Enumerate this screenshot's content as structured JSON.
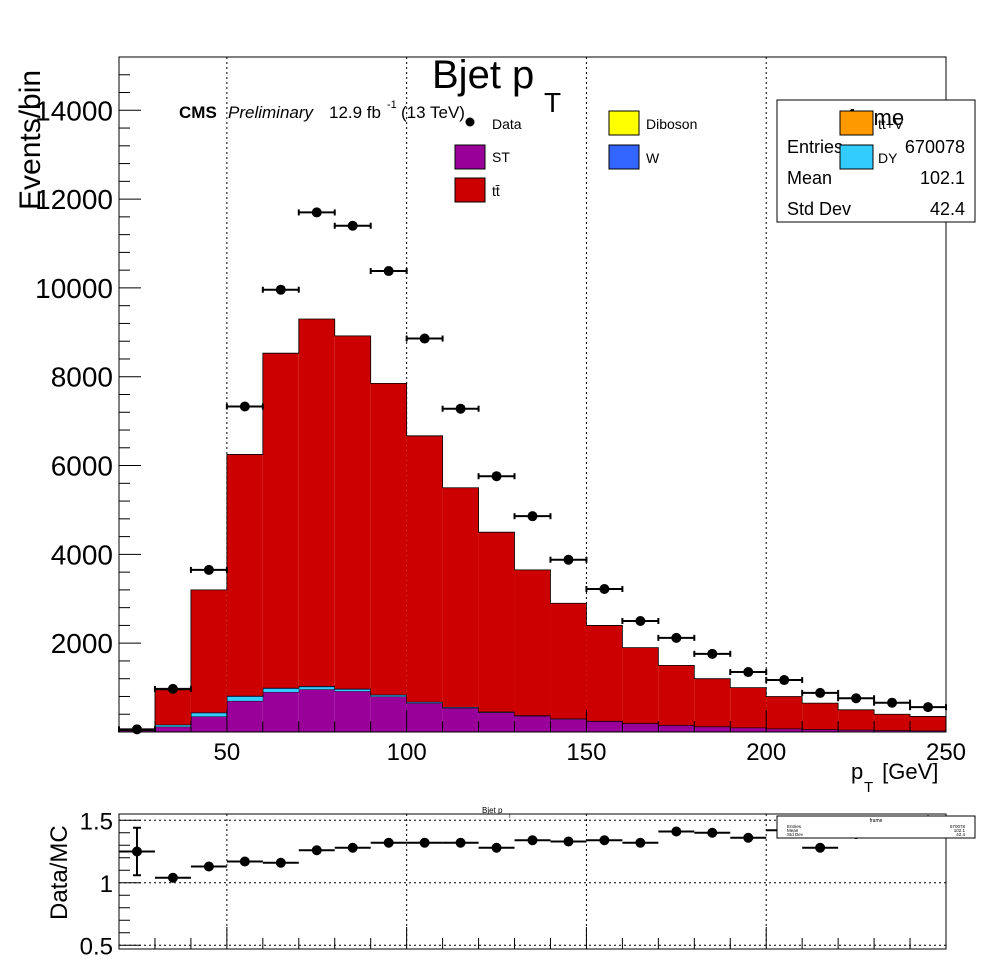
{
  "header": {
    "title": "Bjet p",
    "title_sub": "T",
    "cms_label": "CMS",
    "preliminary": "Preliminary",
    "lumi": "12.9 fb",
    "lumi_exp": "-1",
    "energy": "(13 TeV)"
  },
  "legend": {
    "data": "Data",
    "st": "ST",
    "ttbar": "tt̄",
    "diboson": "Diboson",
    "w": "W",
    "ttv": "tt+V",
    "dy": "DY"
  },
  "stats": {
    "title": "frame",
    "entries_label": "Entries",
    "entries_value": "670078",
    "mean_label": "Mean",
    "mean_value": "102.1",
    "stddev_label": "Std Dev",
    "stddev_value": "42.4"
  },
  "ratio_header": {
    "title": "Bjet p",
    "title_sub": "T"
  },
  "colors": {
    "ttbar": "#cc0000",
    "st": "#990099",
    "dy": "#33ccff",
    "w": "#3366ff",
    "diboson": "#ffff00",
    "ttv": "#ff9900",
    "data": "#000000"
  },
  "chart_data": [
    {
      "type": "bar",
      "stacked": true,
      "xlabel": "p",
      "xlabel_sub": "T",
      "xlabel_unit": " [GeV]",
      "ylabel": "Events/bin",
      "xlim": [
        20,
        250
      ],
      "ylim": [
        0,
        15200
      ],
      "x_ticks": [
        "50",
        "100",
        "150",
        "200",
        "250"
      ],
      "y_ticks": [
        "2000",
        "4000",
        "6000",
        "8000",
        "10000",
        "12000",
        "14000"
      ],
      "grid": "x",
      "legend_position": "top",
      "bin_edges": [
        20,
        30,
        40,
        50,
        60,
        70,
        80,
        90,
        100,
        110,
        120,
        130,
        140,
        150,
        160,
        170,
        180,
        190,
        200,
        210,
        220,
        230,
        240,
        250
      ],
      "series": [
        {
          "name": "ST",
          "color": "#990099",
          "values": [
            30,
            120,
            350,
            700,
            900,
            960,
            920,
            800,
            650,
            540,
            440,
            360,
            290,
            240,
            190,
            150,
            120,
            95,
            75,
            60,
            48,
            38,
            30
          ]
        },
        {
          "name": "DY",
          "color": "#33ccff",
          "values": [
            5,
            40,
            80,
            100,
            80,
            60,
            40,
            30,
            20,
            15,
            12,
            10,
            8,
            6,
            5,
            4,
            3,
            3,
            2,
            2,
            2,
            1,
            1
          ]
        },
        {
          "name": "W",
          "color": "#3366ff",
          "values": [
            1,
            5,
            10,
            15,
            15,
            15,
            15,
            10,
            10,
            8,
            6,
            5,
            4,
            3,
            3,
            2,
            2,
            2,
            1,
            1,
            1,
            1,
            1
          ]
        },
        {
          "name": "tt̄",
          "color": "#cc0000",
          "values": [
            14,
            785,
            2760,
            5435,
            7535,
            8265,
            7945,
            7010,
            5990,
            4937,
            4042,
            3275,
            2598,
            2151,
            1702,
            1344,
            1075,
            900,
            722,
            587,
            449,
            360,
            318
          ]
        }
      ],
      "data": {
        "name": "Data",
        "x": [
          25,
          35,
          45,
          55,
          65,
          75,
          85,
          95,
          105,
          115,
          125,
          135,
          145,
          155,
          165,
          175,
          185,
          195,
          205,
          215,
          225,
          235,
          245
        ],
        "y": [
          60,
          970,
          3650,
          7330,
          9960,
          11700,
          11400,
          10380,
          8860,
          7280,
          5760,
          4860,
          3880,
          3220,
          2500,
          2120,
          1760,
          1350,
          1170,
          880,
          760,
          660,
          560
        ]
      }
    },
    {
      "type": "scatter",
      "ylabel": "Data/MC",
      "xlim": [
        20,
        250
      ],
      "ylim": [
        0.47,
        1.55
      ],
      "y_ticks": [
        "0.5",
        "1",
        "1.5"
      ],
      "grid": "xy",
      "x": [
        25,
        35,
        45,
        55,
        65,
        75,
        85,
        95,
        105,
        115,
        125,
        135,
        145,
        155,
        165,
        175,
        185,
        195,
        205,
        215,
        225,
        235,
        245
      ],
      "y": [
        1.25,
        1.04,
        1.13,
        1.17,
        1.16,
        1.26,
        1.28,
        1.32,
        1.32,
        1.32,
        1.28,
        1.34,
        1.33,
        1.34,
        1.32,
        1.41,
        1.4,
        1.36,
        1.42,
        1.28,
        1.39,
        1.4,
        1.49
      ],
      "y_err": [
        0.19,
        0.02,
        0.02,
        0.02,
        0.02,
        0.02,
        0.02,
        0.02,
        0.02,
        0.02,
        0.02,
        0.02,
        0.02,
        0.02,
        0.02,
        0.02,
        0.02,
        0.02,
        0.03,
        0.03,
        0.04,
        0.04,
        0.05
      ]
    }
  ]
}
